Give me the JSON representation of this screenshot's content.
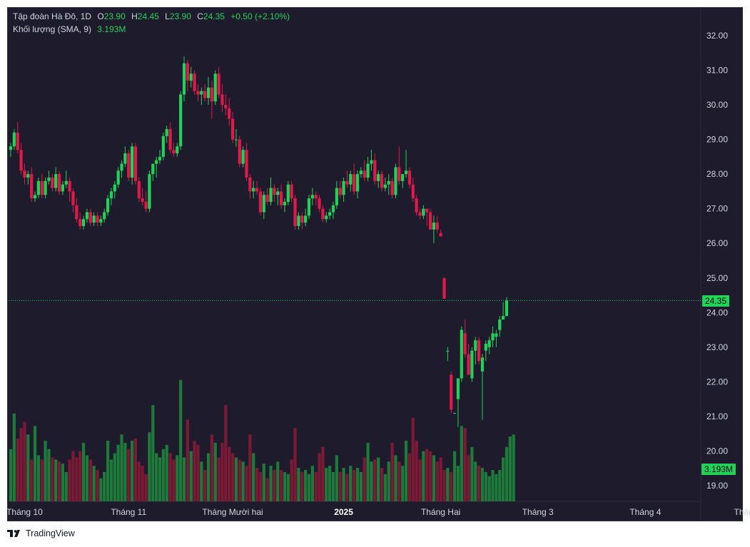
{
  "legend": {
    "symbol": "Tập đoàn Hà Đô, 1D",
    "o_label": "O",
    "o_value": "23.90",
    "h_label": "H",
    "h_value": "24.45",
    "l_label": "L",
    "l_value": "23.90",
    "c_label": "C",
    "c_value": "24.35",
    "change": "+0.50 (+2.10%)",
    "volume_label": "Khối lượng (SMA, 9)",
    "volume_value": "3.193M"
  },
  "price_tag": "24.35",
  "volume_tag": "3.193M",
  "brand": "TradingView",
  "colors": {
    "background": "#1e1c2c",
    "up": "#22d158",
    "down": "#e0194a",
    "up_volume": "#1e7a3a",
    "down_volume": "#7c1a36",
    "text": "#d1d4dc",
    "price_line": "#22d158"
  },
  "chart_data": {
    "type": "candlestick",
    "y_axis_ticks": [
      "32.00",
      "31.00",
      "30.00",
      "29.00",
      "28.00",
      "27.00",
      "26.00",
      "25.00",
      "24.00",
      "23.00",
      "22.00",
      "21.00",
      "20.00",
      "19.00"
    ],
    "ylim": [
      18.5,
      32.5
    ],
    "x_axis_ticks": [
      "Tháng 10",
      "Tháng 11",
      "Tháng Mười hai",
      "2025",
      "Tháng Hai",
      "Tháng 3",
      "Tháng 4",
      "Tháng Năm"
    ],
    "x_axis_tick_index": [
      4,
      34,
      64,
      96,
      124,
      152,
      183,
      215
    ],
    "last_price": 24.35,
    "candles": [
      [
        28.7,
        28.9,
        28.5,
        28.8
      ],
      [
        28.8,
        29.3,
        28.7,
        29.2
      ],
      [
        29.2,
        29.5,
        28.6,
        28.7
      ],
      [
        28.7,
        28.9,
        28.0,
        28.1
      ],
      [
        28.1,
        28.3,
        27.7,
        27.9
      ],
      [
        27.9,
        28.1,
        27.7,
        28.0
      ],
      [
        28.0,
        28.2,
        27.2,
        27.3
      ],
      [
        27.3,
        27.5,
        27.2,
        27.4
      ],
      [
        27.4,
        27.9,
        27.3,
        27.8
      ],
      [
        27.8,
        28.0,
        27.3,
        27.4
      ],
      [
        27.4,
        27.9,
        27.3,
        27.8
      ],
      [
        27.8,
        28.1,
        27.7,
        27.9
      ],
      [
        27.9,
        28.0,
        27.5,
        27.6
      ],
      [
        27.6,
        28.2,
        27.5,
        28.0
      ],
      [
        28.0,
        28.1,
        27.4,
        27.5
      ],
      [
        27.5,
        27.8,
        27.4,
        27.7
      ],
      [
        27.7,
        28.1,
        27.6,
        27.8
      ],
      [
        27.8,
        27.9,
        27.2,
        27.5
      ],
      [
        27.5,
        27.6,
        26.9,
        27.1
      ],
      [
        27.1,
        27.3,
        26.6,
        26.7
      ],
      [
        26.7,
        26.9,
        26.4,
        26.5
      ],
      [
        26.5,
        26.8,
        26.4,
        26.7
      ],
      [
        26.7,
        27.0,
        26.6,
        26.9
      ],
      [
        26.9,
        27.0,
        26.5,
        26.6
      ],
      [
        26.6,
        26.9,
        26.5,
        26.8
      ],
      [
        26.8,
        26.9,
        26.5,
        26.6
      ],
      [
        26.6,
        26.8,
        26.5,
        26.7
      ],
      [
        26.7,
        27.0,
        26.6,
        26.9
      ],
      [
        26.9,
        27.4,
        26.8,
        27.3
      ],
      [
        27.3,
        27.6,
        27.1,
        27.5
      ],
      [
        27.5,
        27.8,
        27.3,
        27.7
      ],
      [
        27.7,
        28.2,
        27.6,
        28.1
      ],
      [
        28.1,
        28.4,
        27.9,
        28.3
      ],
      [
        28.3,
        28.8,
        28.2,
        28.6
      ],
      [
        28.6,
        28.7,
        27.8,
        27.9
      ],
      [
        27.9,
        28.9,
        27.7,
        28.8
      ],
      [
        28.8,
        28.9,
        27.7,
        27.8
      ],
      [
        27.8,
        27.9,
        27.2,
        27.3
      ],
      [
        27.3,
        27.6,
        27.1,
        27.2
      ],
      [
        27.2,
        27.5,
        26.9,
        27.0
      ],
      [
        27.0,
        28.1,
        26.9,
        28.0
      ],
      [
        28.0,
        28.3,
        27.8,
        28.3
      ],
      [
        28.3,
        28.5,
        27.9,
        28.4
      ],
      [
        28.4,
        28.7,
        28.3,
        28.5
      ],
      [
        28.5,
        29.2,
        28.4,
        29.1
      ],
      [
        29.1,
        29.4,
        28.9,
        29.3
      ],
      [
        29.3,
        29.5,
        28.6,
        28.7
      ],
      [
        28.7,
        28.9,
        28.5,
        28.6
      ],
      [
        28.6,
        28.9,
        28.5,
        28.8
      ],
      [
        28.8,
        30.4,
        28.7,
        30.3
      ],
      [
        30.3,
        31.4,
        30.1,
        31.2
      ],
      [
        31.2,
        31.3,
        30.4,
        30.7
      ],
      [
        30.7,
        31.1,
        30.5,
        30.9
      ],
      [
        30.9,
        31.0,
        30.3,
        30.4
      ],
      [
        30.4,
        30.6,
        30.1,
        30.3
      ],
      [
        30.3,
        30.5,
        30.0,
        30.4
      ],
      [
        30.4,
        30.6,
        30.1,
        30.2
      ],
      [
        30.2,
        30.8,
        30.0,
        30.5
      ],
      [
        30.5,
        30.7,
        29.6,
        30.1
      ],
      [
        30.1,
        31.0,
        30.0,
        30.9
      ],
      [
        30.9,
        31.1,
        30.2,
        30.3
      ],
      [
        30.3,
        30.6,
        29.8,
        30.0
      ],
      [
        30.0,
        30.3,
        29.7,
        29.9
      ],
      [
        29.9,
        30.2,
        29.4,
        29.6
      ],
      [
        29.6,
        29.8,
        28.9,
        29.0
      ],
      [
        29.0,
        29.3,
        28.8,
        29.0
      ],
      [
        29.0,
        29.1,
        28.2,
        28.3
      ],
      [
        28.3,
        28.8,
        28.2,
        28.7
      ],
      [
        28.7,
        28.9,
        27.8,
        27.9
      ],
      [
        27.9,
        28.0,
        27.3,
        27.5
      ],
      [
        27.5,
        27.8,
        27.3,
        27.6
      ],
      [
        27.6,
        27.8,
        27.4,
        27.5
      ],
      [
        27.5,
        27.6,
        26.8,
        26.9
      ],
      [
        26.9,
        27.5,
        26.7,
        27.4
      ],
      [
        27.4,
        27.6,
        27.1,
        27.2
      ],
      [
        27.2,
        27.9,
        27.1,
        27.6
      ],
      [
        27.6,
        27.7,
        27.2,
        27.4
      ],
      [
        27.4,
        27.6,
        27.1,
        27.5
      ],
      [
        27.5,
        27.7,
        27.0,
        27.1
      ],
      [
        27.1,
        27.3,
        26.9,
        27.2
      ],
      [
        27.2,
        27.8,
        27.1,
        27.7
      ],
      [
        27.7,
        27.8,
        27.2,
        27.3
      ],
      [
        27.3,
        27.4,
        26.4,
        26.5
      ],
      [
        26.5,
        26.9,
        26.4,
        26.8
      ],
      [
        26.8,
        26.9,
        26.4,
        26.6
      ],
      [
        26.6,
        27.0,
        26.5,
        26.8
      ],
      [
        26.8,
        27.4,
        26.7,
        27.3
      ],
      [
        27.3,
        27.6,
        27.1,
        27.4
      ],
      [
        27.4,
        27.5,
        27.1,
        27.3
      ],
      [
        27.3,
        27.4,
        26.9,
        27.0
      ],
      [
        27.0,
        27.1,
        26.6,
        26.7
      ],
      [
        26.7,
        26.9,
        26.6,
        26.8
      ],
      [
        26.8,
        27.0,
        26.7,
        26.9
      ],
      [
        26.9,
        27.2,
        26.7,
        27.1
      ],
      [
        27.1,
        27.8,
        27.0,
        27.6
      ],
      [
        27.6,
        27.8,
        27.3,
        27.4
      ],
      [
        27.4,
        27.9,
        27.2,
        27.8
      ],
      [
        27.8,
        28.1,
        27.6,
        27.7
      ],
      [
        27.7,
        28.1,
        27.5,
        28.0
      ],
      [
        28.0,
        28.3,
        27.4,
        27.5
      ],
      [
        27.5,
        28.1,
        27.3,
        28.0
      ],
      [
        28.0,
        28.2,
        27.9,
        28.1
      ],
      [
        28.1,
        28.4,
        27.8,
        27.9
      ],
      [
        27.9,
        28.5,
        27.8,
        28.3
      ],
      [
        28.3,
        28.7,
        28.1,
        28.4
      ],
      [
        28.4,
        28.6,
        27.7,
        27.8
      ],
      [
        27.8,
        28.1,
        27.6,
        28.0
      ],
      [
        28.0,
        28.1,
        27.5,
        27.6
      ],
      [
        27.6,
        27.9,
        27.5,
        27.7
      ],
      [
        27.7,
        28.0,
        27.4,
        27.8
      ],
      [
        27.8,
        27.9,
        27.3,
        27.4
      ],
      [
        27.4,
        28.3,
        27.3,
        28.2
      ],
      [
        28.2,
        28.8,
        27.7,
        27.8
      ],
      [
        27.8,
        28.0,
        27.6,
        28.0
      ],
      [
        28.0,
        28.7,
        27.9,
        28.1
      ],
      [
        28.1,
        28.2,
        27.6,
        27.7
      ],
      [
        27.7,
        27.9,
        27.2,
        27.3
      ],
      [
        27.3,
        27.4,
        26.8,
        26.9
      ],
      [
        26.9,
        27.0,
        26.7,
        26.8
      ],
      [
        26.8,
        27.1,
        26.7,
        27.0
      ],
      [
        27.0,
        27.0,
        26.5,
        26.9
      ],
      [
        26.9,
        27.0,
        26.4,
        26.4
      ],
      [
        26.4,
        26.8,
        26.0,
        26.6
      ],
      [
        26.6,
        26.8,
        26.3,
        26.4
      ],
      [
        26.3,
        26.4,
        26.2,
        26.2
      ],
      [
        25.0,
        25.0,
        24.4,
        24.4
      ],
      [
        22.9,
        23.0,
        22.6,
        22.9
      ],
      [
        22.2,
        22.3,
        21.1,
        21.2
      ],
      [
        21.1,
        21.1,
        21.1,
        21.1
      ],
      [
        21.5,
        22.1,
        20.7,
        22.1
      ],
      [
        22.1,
        23.6,
        22.0,
        23.5
      ],
      [
        23.4,
        23.8,
        22.7,
        22.8
      ],
      [
        22.8,
        23.1,
        22.2,
        22.2
      ],
      [
        22.1,
        23.0,
        22.0,
        22.9
      ],
      [
        22.9,
        23.3,
        22.5,
        23.2
      ],
      [
        23.2,
        23.3,
        22.5,
        22.6
      ],
      [
        22.3,
        22.8,
        20.9,
        22.7
      ],
      [
        22.9,
        23.2,
        22.6,
        23.1
      ],
      [
        23.0,
        23.3,
        22.8,
        23.2
      ],
      [
        23.2,
        23.6,
        23.0,
        23.4
      ],
      [
        23.3,
        23.5,
        23.0,
        23.4
      ],
      [
        23.5,
        23.9,
        23.3,
        23.8
      ],
      [
        23.8,
        24.3,
        23.8,
        23.9
      ],
      [
        23.9,
        24.45,
        23.9,
        24.35
      ]
    ],
    "volume_bars": [
      2.5,
      4.2,
      3.0,
      3.5,
      3.8,
      3.2,
      2.0,
      3.6,
      2.2,
      2.0,
      2.9,
      2.5,
      2.1,
      2.0,
      1.9,
      1.8,
      1.4,
      2.0,
      2.4,
      2.1,
      2.4,
      2.8,
      2.2,
      2.0,
      1.7,
      1.5,
      1.1,
      1.4,
      2.9,
      2.0,
      2.3,
      2.7,
      3.2,
      2.8,
      2.5,
      2.9,
      3.0,
      1.9,
      1.7,
      1.3,
      3.3,
      4.6,
      2.3,
      2.1,
      2.5,
      2.7,
      2.3,
      2.0,
      2.2,
      5.8,
      2.1,
      3.9,
      2.4,
      2.9,
      2.7,
      1.9,
      1.5,
      2.3,
      3.2,
      2.8,
      2.1,
      2.8,
      4.6,
      2.6,
      2.3,
      2.1,
      2.0,
      1.9,
      1.7,
      3.2,
      2.3,
      1.6,
      1.4,
      1.8,
      1.1,
      1.7,
      1.5,
      1.9,
      1.5,
      1.4,
      1.3,
      2.0,
      3.5,
      1.6,
      1.4,
      1.5,
      1.3,
      1.7,
      1.4,
      2.3,
      2.6,
      1.6,
      1.7,
      1.4,
      2.2,
      1.4,
      1.6,
      1.3,
      1.7,
      1.5,
      1.6,
      1.4,
      2.1,
      2.8,
      1.9,
      2.0,
      2.1,
      1.6,
      1.3,
      1.9,
      2.8,
      2.2,
      1.9,
      1.7,
      2.9,
      2.3,
      4.0,
      2.9,
      2.0,
      2.4,
      2.5,
      2.4,
      2.2,
      1.9,
      2.1,
      1.5,
      1.6,
      1.4,
      2.4,
      1.7,
      3.6,
      3.5,
      2.2,
      2.6,
      1.9,
      1.7,
      1.6,
      1.4,
      1.2,
      1.5,
      1.3,
      1.5,
      2.1,
      2.6,
      3.1,
      3.193
    ]
  }
}
